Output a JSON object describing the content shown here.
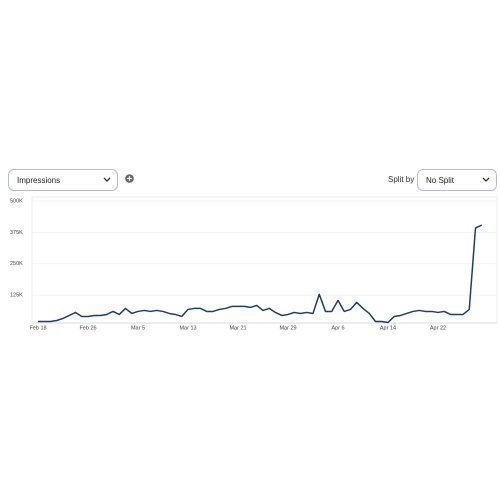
{
  "controls": {
    "metric": "Impressions",
    "split_label": "Split by",
    "split": "No Split"
  },
  "chart_data": {
    "type": "line",
    "categories": [
      "Feb 18",
      null,
      null,
      null,
      null,
      null,
      null,
      null,
      "Feb 26",
      null,
      null,
      null,
      null,
      null,
      null,
      null,
      "Mar 5",
      null,
      null,
      null,
      null,
      null,
      null,
      null,
      "Mar 13",
      null,
      null,
      null,
      null,
      null,
      null,
      null,
      "Mar 21",
      null,
      null,
      null,
      null,
      null,
      null,
      null,
      "Mar 29",
      null,
      null,
      null,
      null,
      null,
      null,
      null,
      "Apr 6",
      null,
      null,
      null,
      null,
      null,
      null,
      null,
      "Apr 14",
      null,
      null,
      null,
      null,
      null,
      null,
      null,
      "Apr 22",
      null,
      null,
      null,
      null,
      null,
      null,
      null
    ],
    "series": [
      {
        "name": "Impressions",
        "color": "#1f3f66",
        "values": [
          20000,
          20000,
          20000,
          24000,
          32000,
          44000,
          56000,
          40000,
          40000,
          44000,
          44000,
          48000,
          60000,
          48000,
          72000,
          52000,
          60000,
          64000,
          60000,
          64000,
          60000,
          52000,
          48000,
          40000,
          68000,
          72000,
          72000,
          60000,
          60000,
          68000,
          72000,
          80000,
          80000,
          80000,
          76000,
          84000,
          64000,
          72000,
          56000,
          44000,
          48000,
          56000,
          52000,
          56000,
          52000,
          128000,
          60000,
          60000,
          104000,
          60000,
          68000,
          96000,
          72000,
          52000,
          20000,
          20000,
          16000,
          40000,
          44000,
          52000,
          60000,
          64000,
          60000,
          60000,
          56000,
          60000,
          48000,
          48000,
          48000,
          68000,
          392000,
          404000
        ]
      }
    ],
    "ylim": [
      0,
      500000
    ],
    "yticks": [
      {
        "value": 125000,
        "label": "125K"
      },
      {
        "value": 250000,
        "label": "250K"
      },
      {
        "value": 375000,
        "label": "375K"
      },
      {
        "value": 500000,
        "label": "500K"
      }
    ],
    "grid": true
  }
}
